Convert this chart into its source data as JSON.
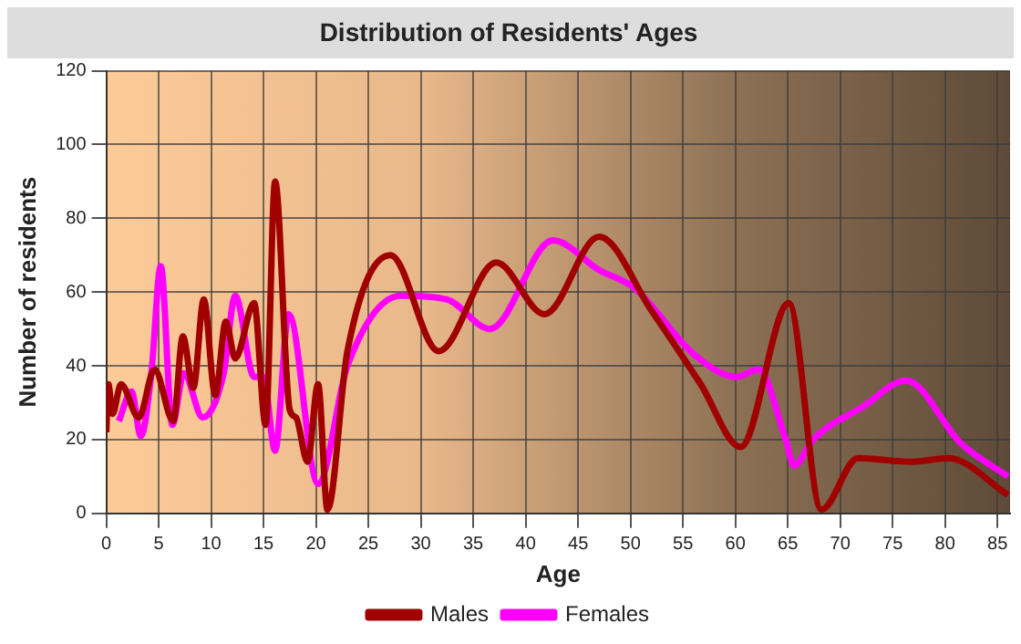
{
  "chart_data": {
    "type": "line",
    "title": "Distribution of Residents' Ages",
    "xlabel": "Age",
    "ylabel": "Number of residents",
    "xlim": [
      0,
      86.2
    ],
    "xticks": [
      0,
      5,
      10,
      15,
      20,
      25,
      30,
      35,
      40,
      45,
      50,
      55,
      60,
      65,
      70,
      75,
      80,
      85
    ],
    "ylim": [
      0,
      120
    ],
    "yticks": [
      0,
      20,
      40,
      60,
      80,
      100,
      120
    ],
    "grid": true,
    "legend": "bottom",
    "marker": "none",
    "line_style": "solid",
    "series": [
      {
        "name": "Males",
        "color": "#a00000",
        "x": [
          0,
          0.2,
          0.6,
          1.4,
          3.1,
          4.6,
          6.4,
          7.3,
          8.3,
          9.3,
          10.4,
          11.4,
          12.3,
          14.1,
          15.2,
          16.1,
          17.5,
          18.1,
          19.2,
          20.2,
          21.1,
          23,
          27.1,
          31.7,
          37.2,
          41.8,
          47,
          52,
          56.7,
          60.5,
          65.1,
          68.2,
          71.7,
          76.9,
          80.3,
          86
        ],
        "values": [
          22,
          35,
          27,
          35,
          26,
          39,
          25,
          48,
          34,
          58,
          32,
          52,
          42,
          57,
          24,
          90,
          28,
          26,
          14,
          35,
          1,
          44,
          70,
          44,
          68,
          54,
          75,
          55,
          35,
          18,
          57,
          1,
          15,
          14,
          15,
          5
        ]
      },
      {
        "name": "Females",
        "color": "#ff00ff",
        "x": [
          1.2,
          2.4,
          3.3,
          4.3,
          5.2,
          6.3,
          7.4,
          9.2,
          11.2,
          12.3,
          14.1,
          15,
          16.1,
          17.4,
          20.2,
          23,
          28.1,
          32.5,
          36.6,
          42.6,
          47,
          50.4,
          56.1,
          60.1,
          62.2,
          64.8,
          65.6,
          67.4,
          72.2,
          76.3,
          81.5,
          86
        ],
        "values": [
          25,
          33,
          21,
          38,
          67,
          24,
          38,
          26,
          38,
          59,
          37,
          37,
          17,
          54,
          8,
          40,
          59,
          58,
          50,
          74,
          66,
          61,
          43,
          37,
          39,
          20,
          13,
          20,
          29,
          36,
          19,
          10
        ]
      }
    ]
  }
}
